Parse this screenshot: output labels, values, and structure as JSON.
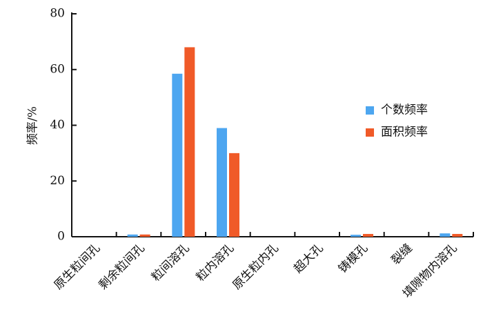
{
  "chart_data": {
    "type": "bar",
    "y_label": "频率/%",
    "categories": [
      "原生粒间孔",
      "剩余粒间孔",
      "粒间溶孔",
      "粒内溶孔",
      "原生粒内孔",
      "超大孔",
      "铸模孔",
      "裂缝",
      "填隙物内溶孔"
    ],
    "series": [
      {
        "name": "个数频率",
        "color": "#4da6f0",
        "values": [
          0,
          0.8,
          58.5,
          39,
          0,
          0,
          0.7,
          0,
          1.2
        ]
      },
      {
        "name": "面积频率",
        "color": "#f05a28",
        "values": [
          0,
          0.8,
          68,
          30,
          0,
          0,
          1,
          0,
          1
        ]
      }
    ],
    "ylim": [
      0,
      80
    ],
    "yticks": [
      0,
      20,
      40,
      60,
      80
    ],
    "grid": false,
    "legend": "right"
  }
}
